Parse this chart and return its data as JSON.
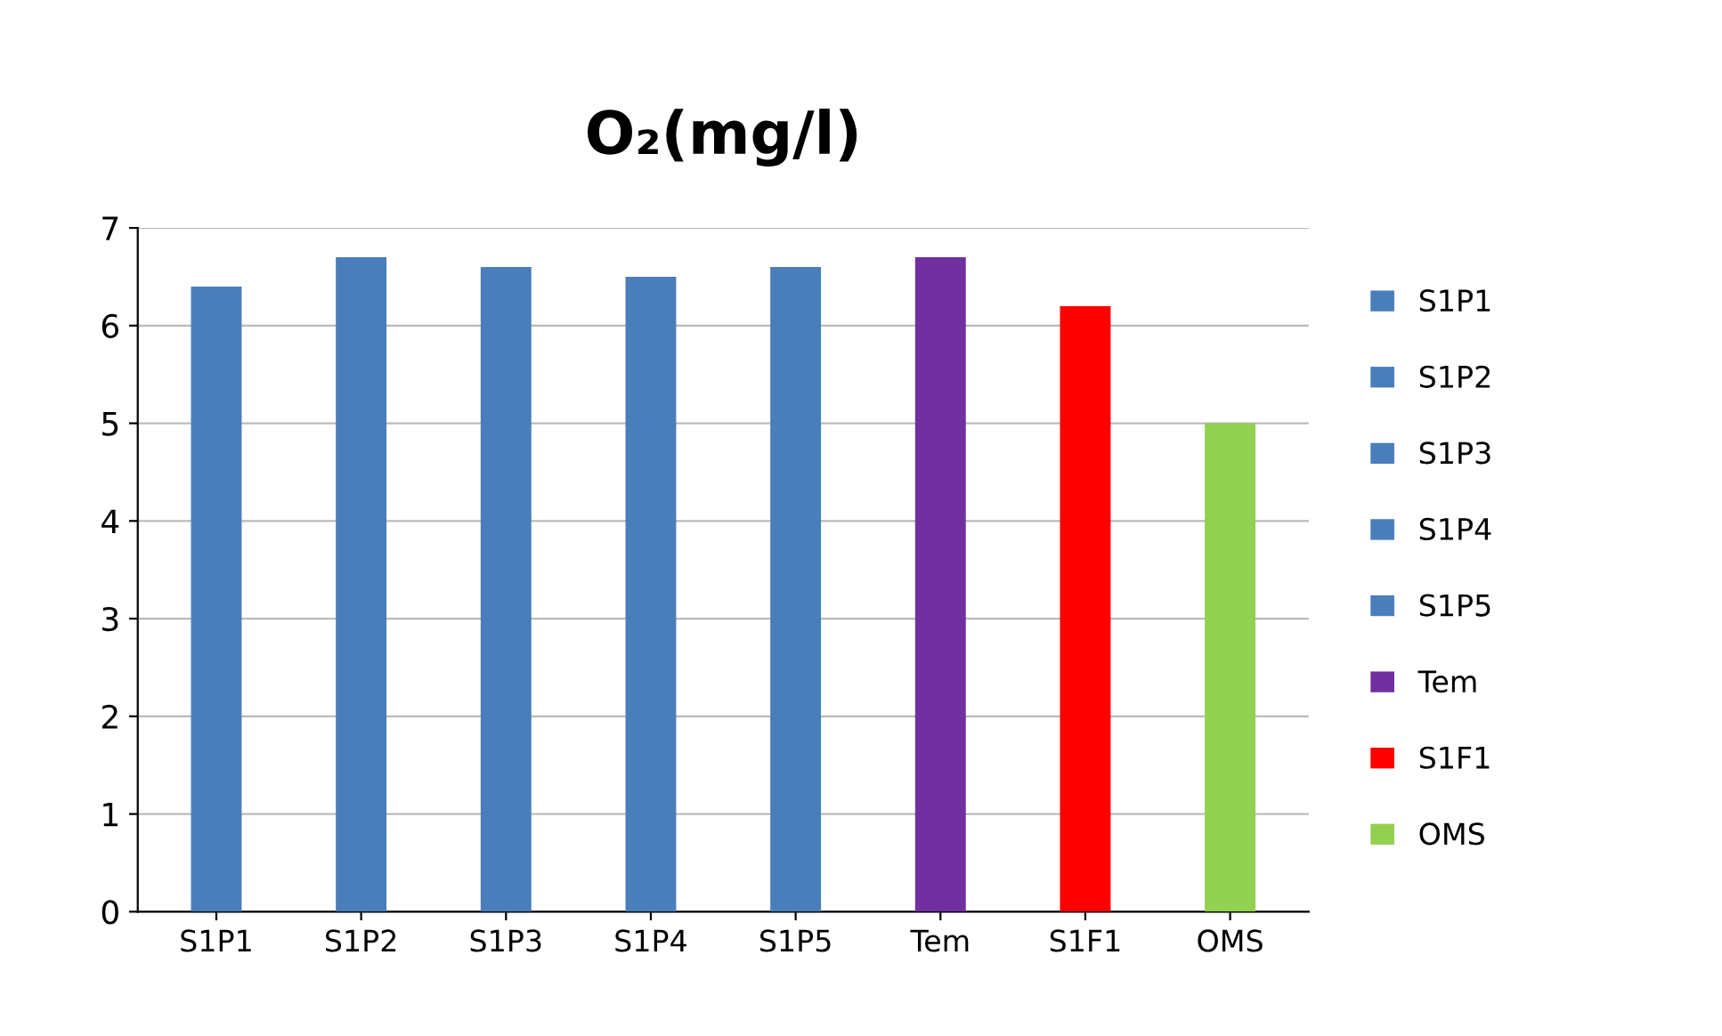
{
  "chart_data": {
    "type": "bar",
    "title": "O₂(mg/l)",
    "categories": [
      "S1P1",
      "S1P2",
      "S1P3",
      "S1P4",
      "S1P5",
      "Tem",
      "S1F1",
      "OMS"
    ],
    "series": [
      {
        "name": "S1P1",
        "color": "#4a7ebb",
        "values": [
          6.4,
          null,
          null,
          null,
          null,
          null,
          null,
          null
        ]
      },
      {
        "name": "S1P2",
        "color": "#4a7ebb",
        "values": [
          null,
          6.7,
          null,
          null,
          null,
          null,
          null,
          null
        ]
      },
      {
        "name": "S1P3",
        "color": "#4a7ebb",
        "values": [
          null,
          null,
          6.6,
          null,
          null,
          null,
          null,
          null
        ]
      },
      {
        "name": "S1P4",
        "color": "#4a7ebb",
        "values": [
          null,
          null,
          null,
          6.5,
          null,
          null,
          null,
          null
        ]
      },
      {
        "name": "S1P5",
        "color": "#4a7ebb",
        "values": [
          null,
          null,
          null,
          null,
          6.6,
          null,
          null,
          null
        ]
      },
      {
        "name": "Tem",
        "color": "#7030a0",
        "values": [
          null,
          null,
          null,
          null,
          null,
          6.7,
          null,
          null
        ]
      },
      {
        "name": "S1F1",
        "color": "#ff0000",
        "values": [
          null,
          null,
          null,
          null,
          null,
          null,
          6.2,
          null
        ]
      },
      {
        "name": "OMS",
        "color": "#92d050",
        "values": [
          null,
          null,
          null,
          null,
          null,
          null,
          null,
          5.0
        ]
      }
    ],
    "ylim": [
      0,
      7
    ],
    "yticks": [
      0,
      1,
      2,
      3,
      4,
      5,
      6,
      7
    ],
    "grid": "y",
    "legend": "right"
  }
}
